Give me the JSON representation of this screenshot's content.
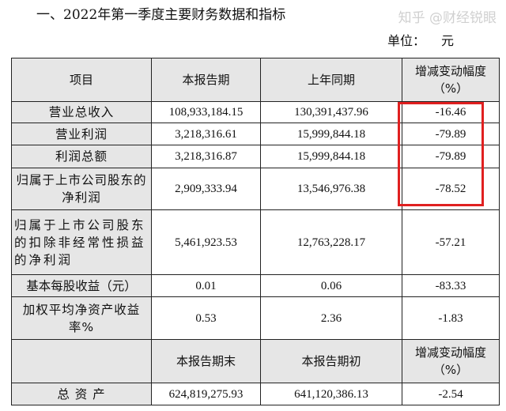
{
  "title": "一、2022年第一季度主要财务数据和指标",
  "unit": {
    "label": "单位：",
    "value": "元"
  },
  "header": [
    "项目",
    "本报告期",
    "上年同期",
    "增减变动幅度（%）"
  ],
  "rows": [
    {
      "item": "营业总收入",
      "current": "108,933,184.15",
      "prior": "130,391,437.96",
      "change": "-16.46"
    },
    {
      "item": "营业利润",
      "current": "3,218,316.61",
      "prior": "15,999,844.18",
      "change": "-79.89"
    },
    {
      "item": "利润总额",
      "current": "3,218,316.87",
      "prior": "15,999,844.18",
      "change": "-79.89"
    },
    {
      "item": "归属于上市公司股东的净利润",
      "current": "2,909,333.94",
      "prior": "13,546,976.38",
      "change": "-78.52"
    },
    {
      "item": "归属于上市公司股东的扣除非经常性损益的净利润",
      "current": "5,461,923.53",
      "prior": "12,763,228.17",
      "change": "-57.21"
    },
    {
      "item": "基本每股收益（元）",
      "current": "0.01",
      "prior": "0.06",
      "change": "-83.33"
    },
    {
      "item": "加权平均净资产收益率%",
      "current": "0.53",
      "prior": "2.36",
      "change": "-1.83"
    }
  ],
  "header2": [
    "",
    "本报告期末",
    "本报告期初",
    "增减变动幅度（%）"
  ],
  "rows2": [
    {
      "item": "总 资 产",
      "current": "624,819,275.93",
      "prior": "641,120,386.13",
      "change": "-2.54"
    }
  ],
  "highlight_color": "#e02020",
  "watermark": "知乎 @财经锐眼"
}
